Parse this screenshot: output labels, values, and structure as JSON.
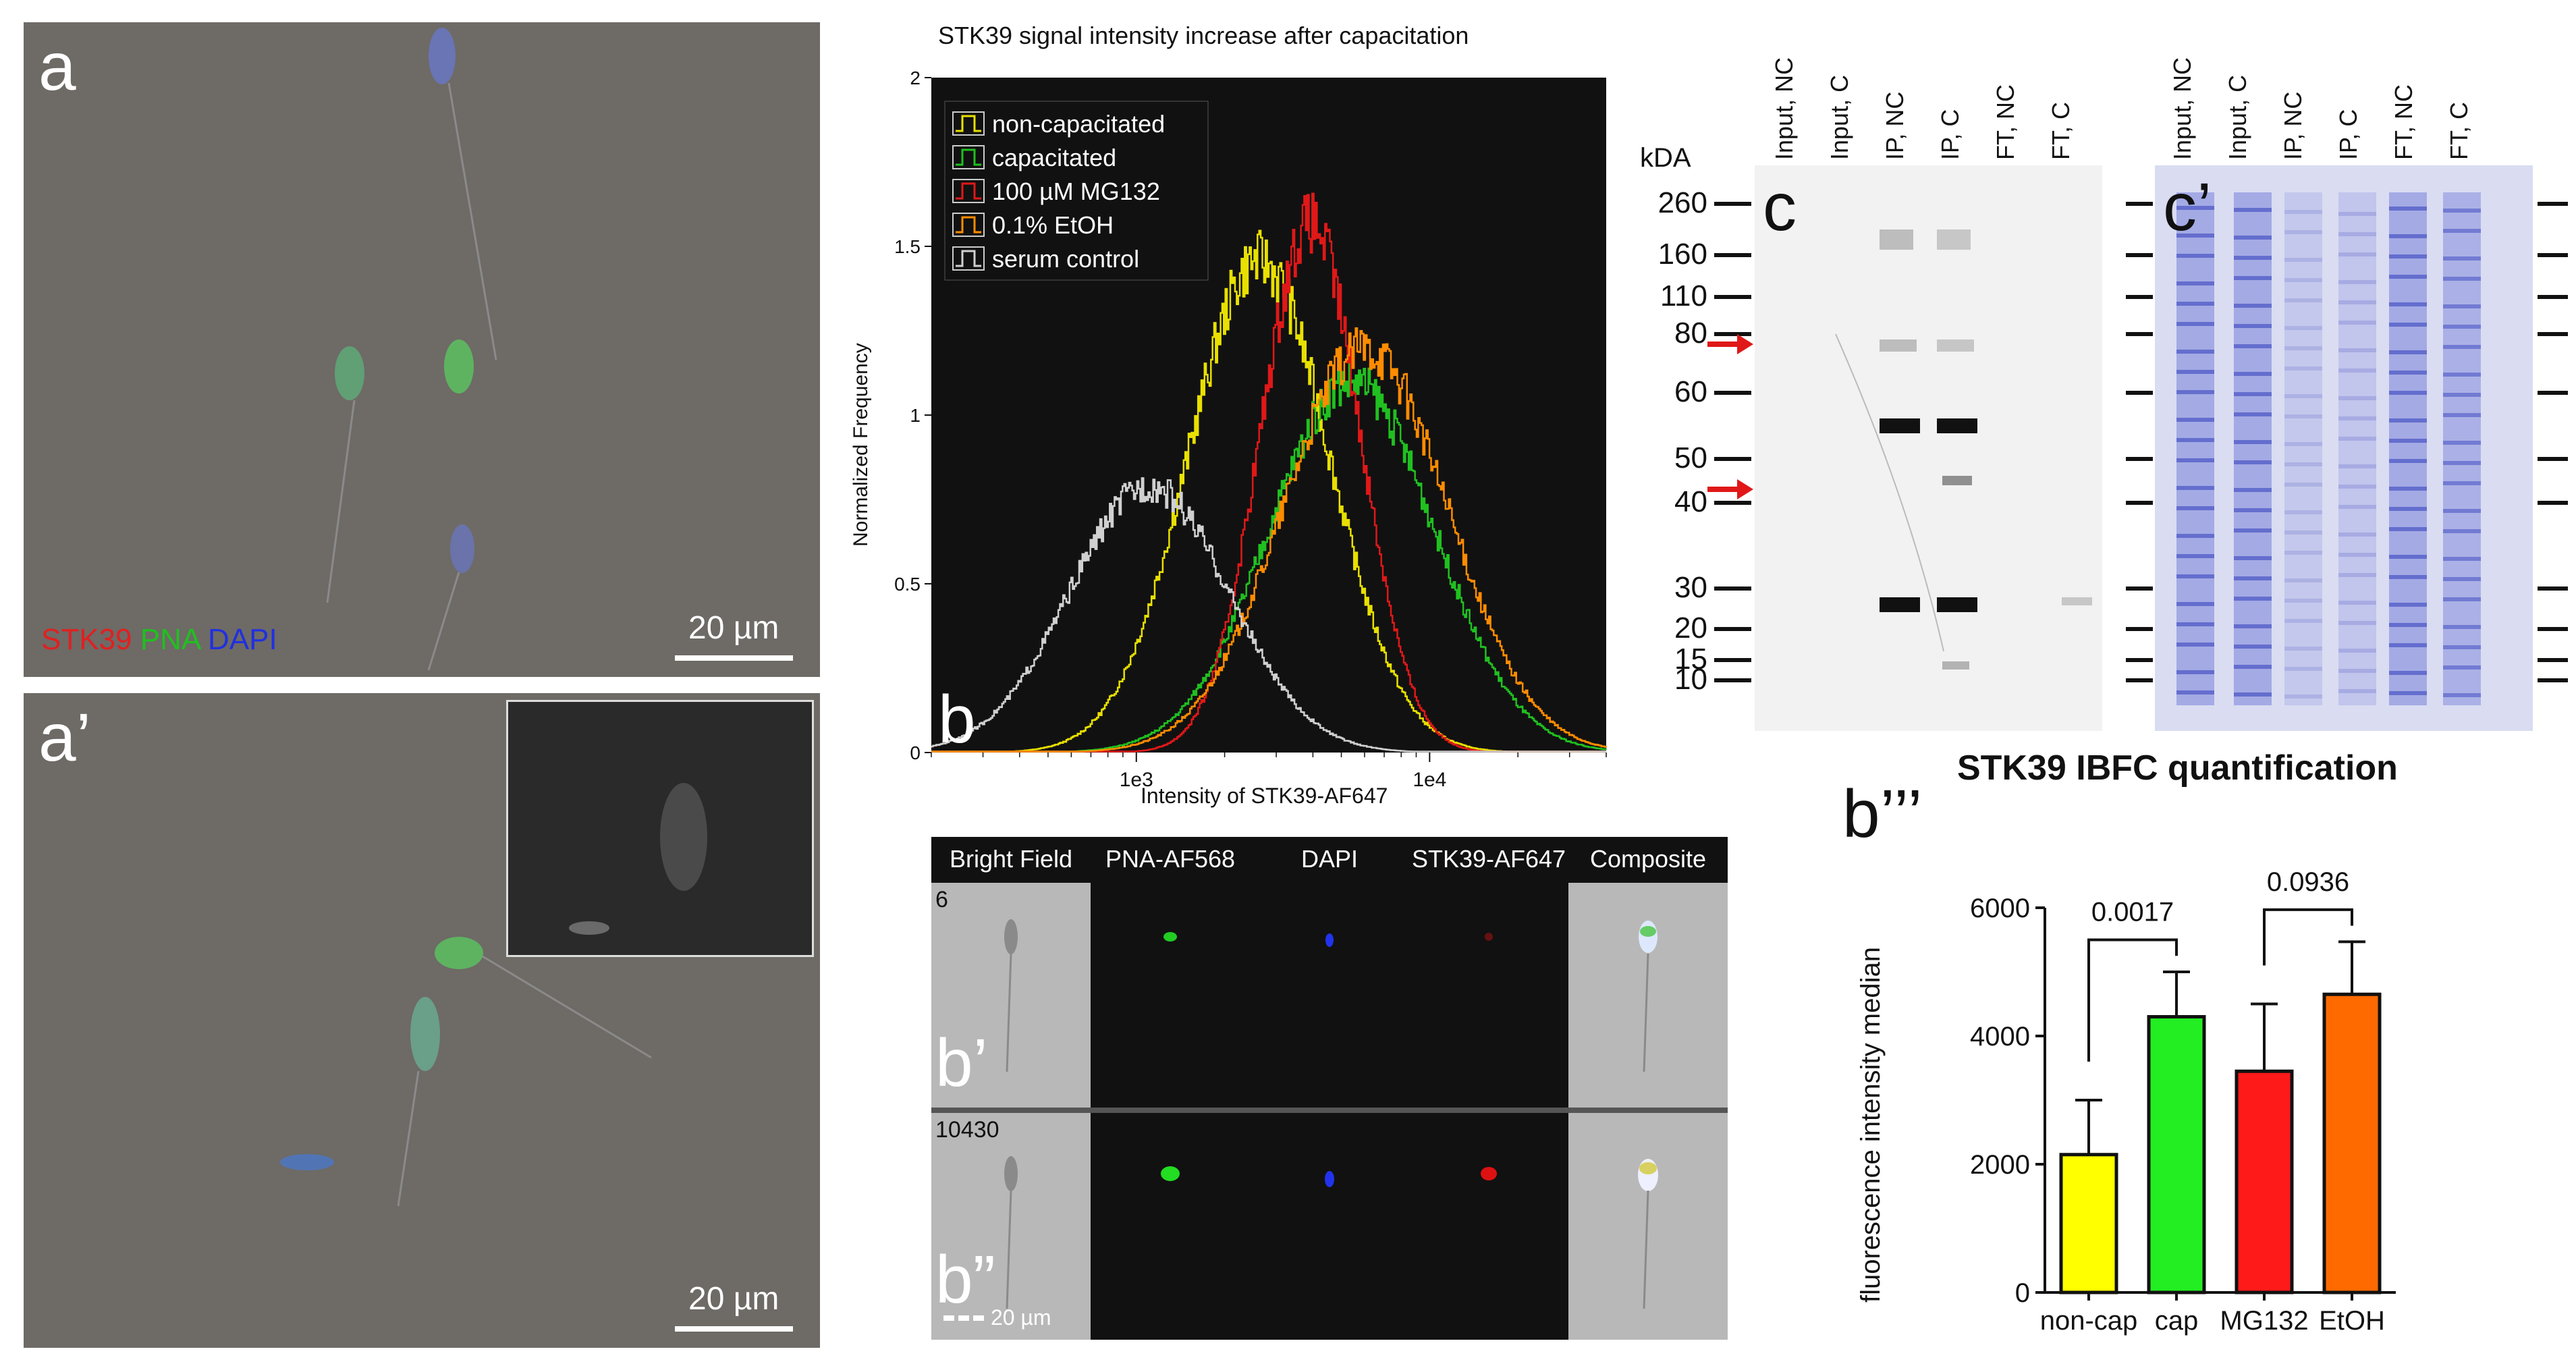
{
  "panels": {
    "a": {
      "label": "a",
      "scale": "20 µm",
      "channels": [
        "STK39",
        "PNA",
        "DAPI"
      ],
      "channel_colors": [
        "#e02020",
        "#20c020",
        "#2030e0"
      ]
    },
    "a_prime": {
      "label": "a’",
      "scale": "20 µm"
    },
    "b": {
      "label": "b"
    },
    "b_prime": {
      "label": "b’",
      "count": "6"
    },
    "b_dprime": {
      "label": "b”",
      "count": "10430",
      "scale": "20 µm"
    },
    "b_tprime": {
      "label": "b’’’"
    },
    "c": {
      "label": "c"
    },
    "c_prime": {
      "label": "c’"
    }
  },
  "ifc": {
    "columns": [
      "Bright Field",
      "PNA-AF568",
      "DAPI",
      "STK39-AF647",
      "Composite"
    ]
  },
  "blot": {
    "kda_label": "kDA",
    "markers": [
      "260",
      "160",
      "110",
      "80",
      "60",
      "50",
      "40",
      "30",
      "20",
      "15",
      "10"
    ],
    "lanes": [
      "Input,  NC",
      "Input, C",
      "IP, NC",
      "IP, C",
      "FT, NC",
      "FT, C"
    ],
    "lanes_c_prime": [
      "Input,  NC",
      "Input, C",
      "IP, NC",
      "IP, C",
      "FT, NC",
      "FT, C"
    ]
  },
  "chart_data": [
    {
      "type": "line",
      "title": "STK39 signal intensity increase after capacitation",
      "xlabel": "Intensity of STK39-AF647",
      "ylabel": "Normalized Frequency",
      "xscale": "log",
      "xlim": [
        200,
        40000
      ],
      "ylim": [
        0,
        2
      ],
      "xticks": [
        "1e3",
        "1e4"
      ],
      "yticks": [
        "0",
        "0.5",
        "1",
        "1.5",
        "2"
      ],
      "legend": "top-left",
      "series": [
        {
          "name": "non-capacitated",
          "color": "#e8e000",
          "peak_x": 2600,
          "peak_y": 1.46,
          "sigma": 0.24
        },
        {
          "name": "capacitated",
          "color": "#20c020",
          "peak_x": 5400,
          "peak_y": 1.1,
          "sigma": 0.28
        },
        {
          "name": "100 µM MG132",
          "color": "#e01818",
          "peak_x": 3900,
          "peak_y": 1.57,
          "sigma": 0.17
        },
        {
          "name": "0.1% EtOH",
          "color": "#ff8c00",
          "peak_x": 6000,
          "peak_y": 1.2,
          "sigma": 0.28
        },
        {
          "name": "serum control",
          "color": "#d0d0d0",
          "peak_x": 1100,
          "peak_y": 0.79,
          "sigma": 0.27
        }
      ]
    },
    {
      "type": "bar",
      "title": "STK39 IBFC quantification",
      "ylabel": "fluorescence intensity median",
      "categories": [
        "non-cap",
        "cap",
        "MG132",
        "EtOH"
      ],
      "values": [
        2150,
        4300,
        3450,
        4650
      ],
      "errors": [
        850,
        700,
        1050,
        820
      ],
      "colors": [
        "#ffff00",
        "#22ee22",
        "#ff1a1a",
        "#ff6a00"
      ],
      "ylim": [
        0,
        6000
      ],
      "yticks": [
        "0",
        "2000",
        "4000",
        "6000"
      ],
      "comparisons": [
        {
          "pair": [
            "non-cap",
            "cap"
          ],
          "p": "0.0017"
        },
        {
          "pair": [
            "MG132",
            "EtOH"
          ],
          "p": "0.0936"
        }
      ]
    }
  ]
}
